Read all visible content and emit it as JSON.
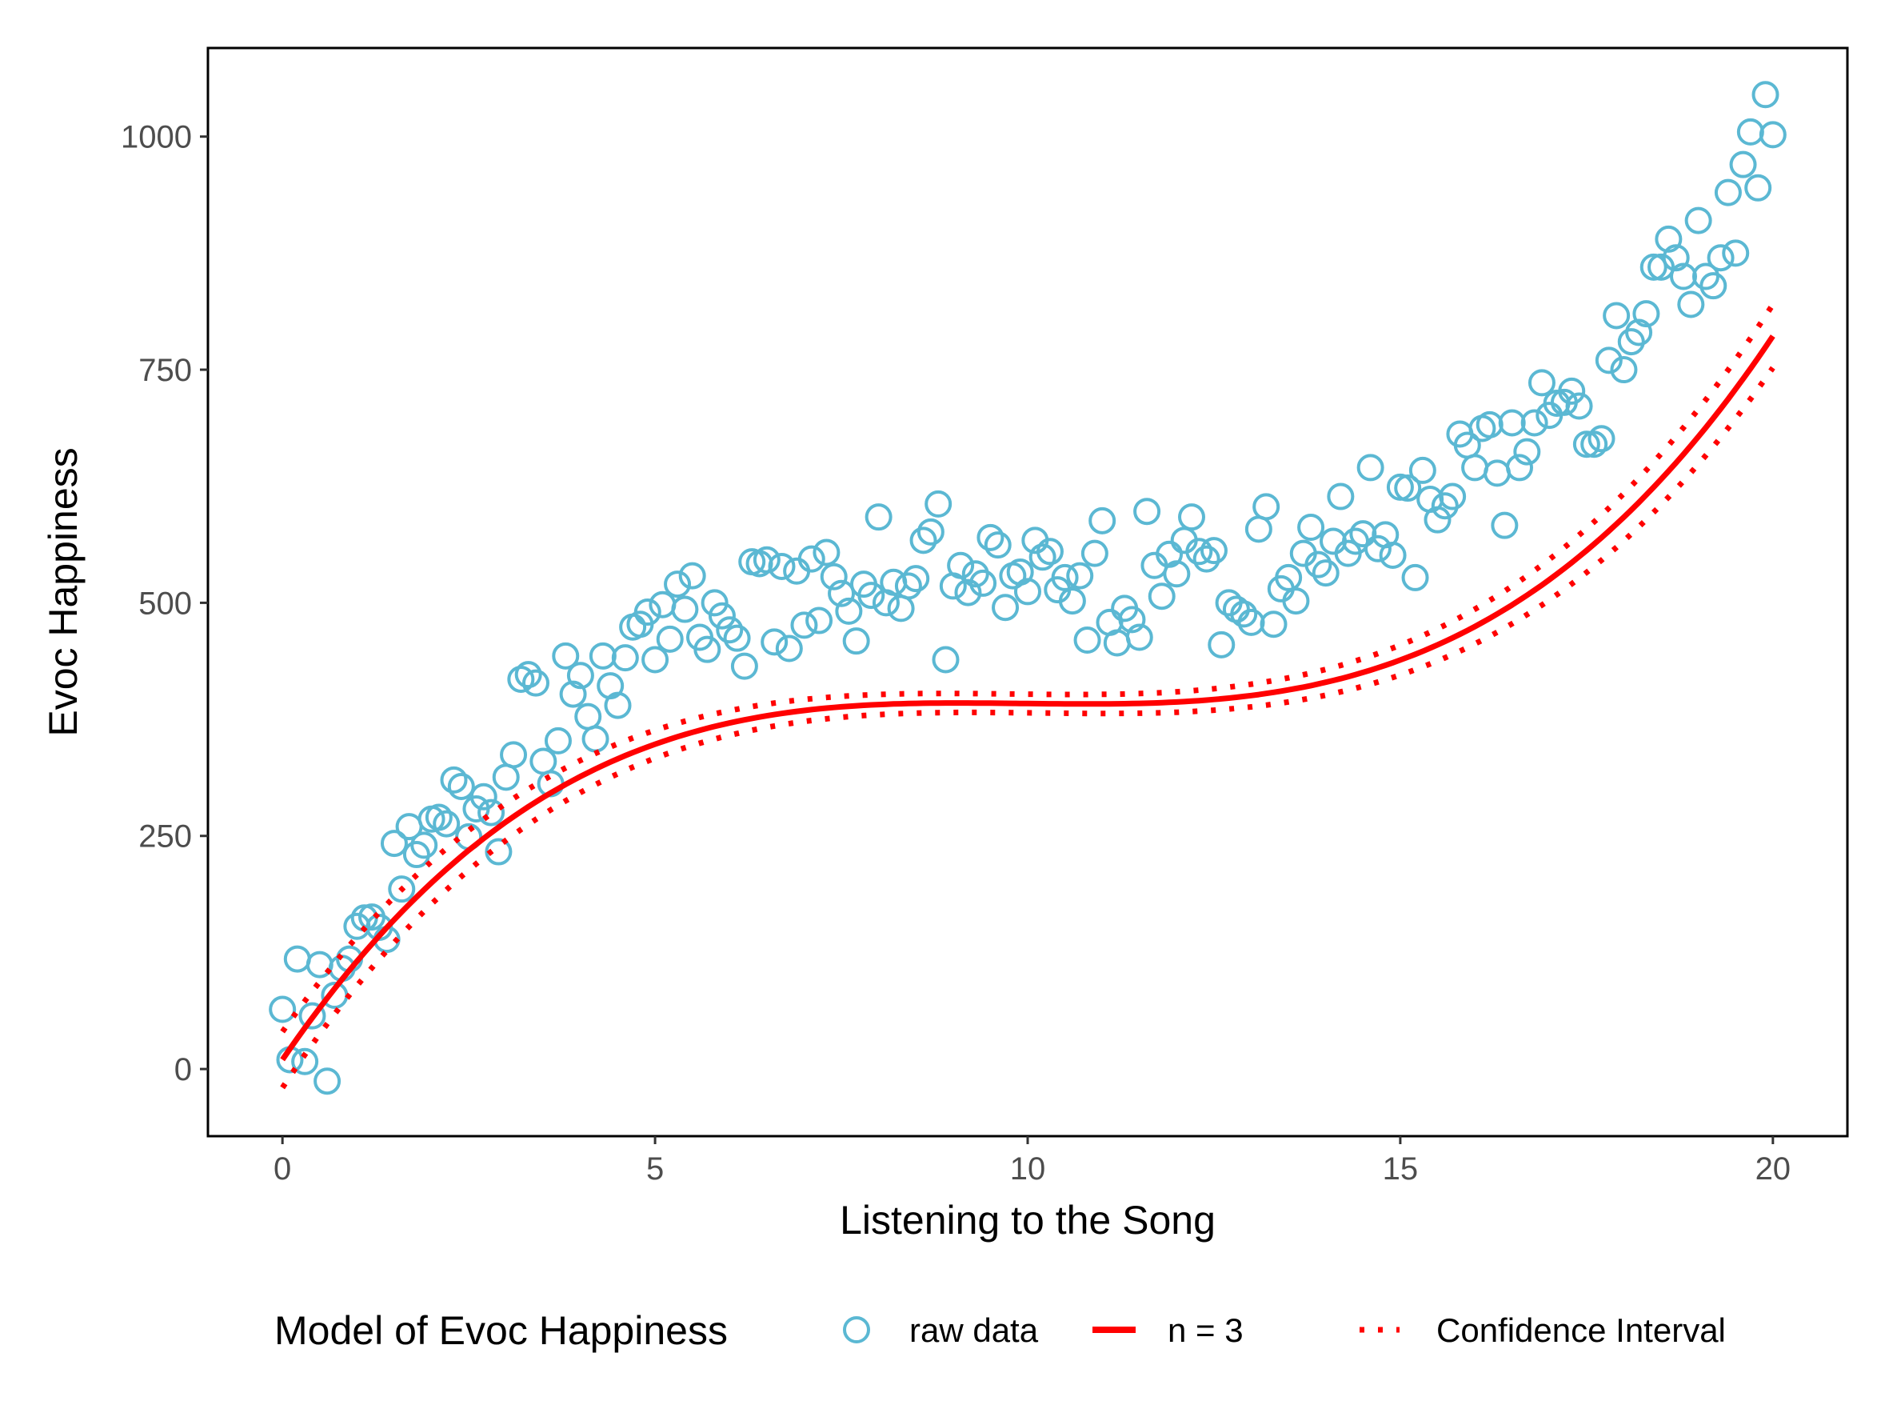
{
  "chart_data": {
    "type": "scatter",
    "title": "",
    "xlabel": "Listening to the Song",
    "ylabel": "Evoc Happiness",
    "xlim": [
      -1,
      21
    ],
    "ylim": [
      -72,
      1095
    ],
    "xticks": [
      0,
      5,
      10,
      15,
      20
    ],
    "xtick_labels": [
      "0",
      "5",
      "10",
      "15",
      "20"
    ],
    "yticks": [
      0,
      250,
      500,
      750,
      1000
    ],
    "ytick_labels": [
      "0",
      "250",
      "500",
      "750",
      "1000"
    ],
    "grid": false,
    "legend": {
      "position": "bottom",
      "title": "Model of Evoc Happiness",
      "entries": [
        "raw data",
        "n = 3",
        "Confidence Interval"
      ]
    },
    "colors": {
      "raw_data": "#5bb8d3",
      "fit": "#ff0000",
      "axis": "#000000"
    },
    "series": [
      {
        "name": "raw data",
        "type": "scatter",
        "marker": "open-circle",
        "x": [
          0.0,
          0.1,
          0.2,
          0.3,
          0.4,
          0.5,
          0.6,
          0.7,
          0.8,
          0.9,
          1.0,
          1.1,
          1.2,
          1.3,
          1.4,
          1.5,
          1.6,
          1.7,
          1.8,
          1.9,
          2.0,
          2.1,
          2.2,
          2.3,
          2.4,
          2.5,
          2.6,
          2.7,
          2.8,
          2.9,
          3.0,
          3.1,
          3.2,
          3.3,
          3.4,
          3.5,
          3.6,
          3.7,
          3.8,
          3.9,
          4.0,
          4.1,
          4.2,
          4.3,
          4.4,
          4.5,
          4.6,
          4.7,
          4.8,
          4.9,
          5.0,
          5.1,
          5.2,
          5.3,
          5.4,
          5.5,
          5.6,
          5.7,
          5.8,
          5.9,
          6.0,
          6.1,
          6.2,
          6.3,
          6.4,
          6.5,
          6.6,
          6.7,
          6.8,
          6.9,
          7.0,
          7.1,
          7.2,
          7.3,
          7.4,
          7.5,
          7.6,
          7.7,
          7.8,
          7.9,
          8.0,
          8.1,
          8.2,
          8.3,
          8.4,
          8.5,
          8.6,
          8.7,
          8.8,
          8.9,
          9.0,
          9.1,
          9.2,
          9.3,
          9.4,
          9.5,
          9.6,
          9.7,
          9.8,
          9.9,
          10.0,
          10.1,
          10.2,
          10.3,
          10.4,
          10.5,
          10.6,
          10.7,
          10.8,
          10.9,
          11.0,
          11.1,
          11.2,
          11.3,
          11.4,
          11.5,
          11.6,
          11.7,
          11.8,
          11.9,
          12.0,
          12.1,
          12.2,
          12.3,
          12.4,
          12.5,
          12.6,
          12.7,
          12.8,
          12.9,
          13.0,
          13.1,
          13.2,
          13.3,
          13.4,
          13.5,
          13.6,
          13.7,
          13.8,
          13.9,
          14.0,
          14.1,
          14.2,
          14.3,
          14.4,
          14.5,
          14.6,
          14.7,
          14.8,
          14.9,
          15.0,
          15.1,
          15.2,
          15.3,
          15.4,
          15.5,
          15.6,
          15.7,
          15.8,
          15.9,
          16.0,
          16.1,
          16.2,
          16.3,
          16.4,
          16.5,
          16.6,
          16.7,
          16.8,
          16.9,
          17.0,
          17.1,
          17.2,
          17.3,
          17.4,
          17.5,
          17.6,
          17.7,
          17.8,
          17.9,
          18.0,
          18.1,
          18.2,
          18.3,
          18.4,
          18.5,
          18.6,
          18.7,
          18.8,
          18.9,
          19.0,
          19.1,
          19.2,
          19.3,
          19.4,
          19.5,
          19.6,
          19.7,
          19.8,
          19.9,
          20.0
        ],
        "y": [
          64,
          10,
          118,
          8,
          57,
          112,
          -13,
          79,
          108,
          118,
          153,
          162,
          163,
          152,
          139,
          242,
          193,
          260,
          230,
          240,
          268,
          270,
          263,
          310,
          303,
          249,
          279,
          292,
          275,
          233,
          313,
          337,
          418,
          423,
          414,
          330,
          306,
          352,
          443,
          402,
          422,
          378,
          354,
          443,
          411,
          390,
          441,
          474,
          477,
          490,
          439,
          498,
          461,
          520,
          493,
          529,
          463,
          450,
          500,
          486,
          471,
          462,
          432,
          544,
          542,
          546,
          458,
          539,
          451,
          534,
          476,
          547,
          481,
          554,
          528,
          510,
          491,
          459,
          520,
          508,
          592,
          500,
          522,
          494,
          518,
          526,
          567,
          576,
          606,
          439,
          518,
          540,
          511,
          531,
          521,
          570,
          562,
          495,
          529,
          533,
          512,
          567,
          549,
          555,
          514,
          527,
          502,
          529,
          460,
          553,
          588,
          479,
          457,
          494,
          482,
          463,
          598,
          540,
          507,
          552,
          531,
          567,
          592,
          555,
          547,
          556,
          455,
          500,
          493,
          488,
          479,
          579,
          603,
          477,
          515,
          527,
          502,
          553,
          581,
          541,
          532,
          566,
          614,
          553,
          566,
          574,
          645,
          558,
          573,
          551,
          624,
          623,
          527,
          642,
          611,
          589,
          604,
          614,
          681,
          669,
          645,
          687,
          691,
          639,
          583,
          693,
          645,
          662,
          693,
          736,
          701,
          714,
          715,
          727,
          711,
          670,
          670,
          676,
          760,
          808,
          750,
          780,
          790,
          810,
          860,
          860,
          890,
          870,
          850,
          820,
          910,
          850,
          840,
          870,
          940,
          875,
          970,
          1005,
          945,
          1045,
          1002
        ]
      },
      {
        "name": "n = 3",
        "type": "line",
        "coefficients": [
          10,
          117,
          -11.85,
          0.397
        ]
      },
      {
        "name": "Confidence Interval",
        "type": "line",
        "style": "dotted",
        "offset_range": [
          30,
          10,
          34
        ]
      }
    ]
  }
}
